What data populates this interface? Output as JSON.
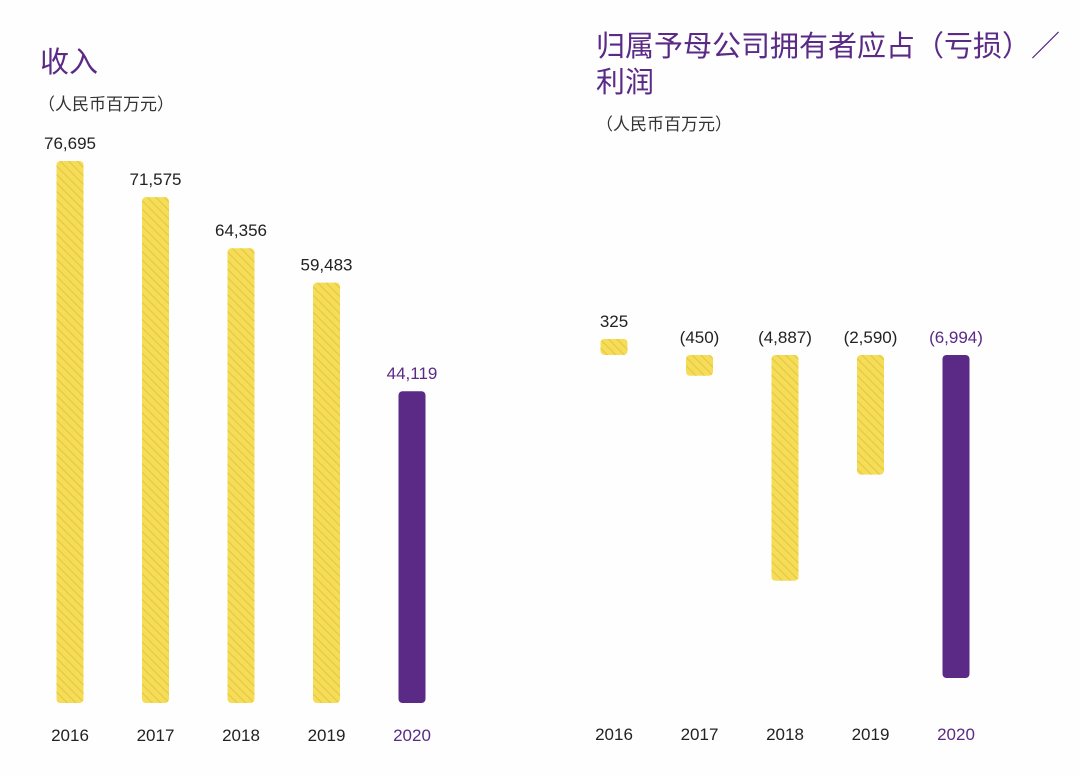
{
  "colors": {
    "accent": "#5a2a86",
    "bar": "#f5dd5c",
    "bar_stripe": "#eac937"
  },
  "chart_data": [
    {
      "type": "bar",
      "title": "收入",
      "subtitle": "（人民币百万元）",
      "categories": [
        "2016",
        "2017",
        "2018",
        "2019",
        "2020"
      ],
      "values": [
        76695,
        71575,
        64356,
        59483,
        44119
      ],
      "labels": [
        "76,695",
        "71,575",
        "64,356",
        "59,483",
        "44,119"
      ],
      "highlight": "2020",
      "ylim": [
        0,
        76695
      ]
    },
    {
      "type": "bar",
      "title": "归属予母公司拥有者应占（亏损）／利润",
      "title_lines": [
        "归属予母公司拥有者应占（亏损）／",
        "利润"
      ],
      "subtitle": "（人民币百万元）",
      "categories": [
        "2016",
        "2017",
        "2018",
        "2019",
        "2020"
      ],
      "values": [
        325,
        -450,
        -4887,
        -2590,
        -6994
      ],
      "labels": [
        "325",
        "(450)",
        "(4,887)",
        "(2,590)",
        "(6,994)"
      ],
      "highlight": "2020",
      "ylim": [
        -6994,
        325
      ]
    }
  ]
}
